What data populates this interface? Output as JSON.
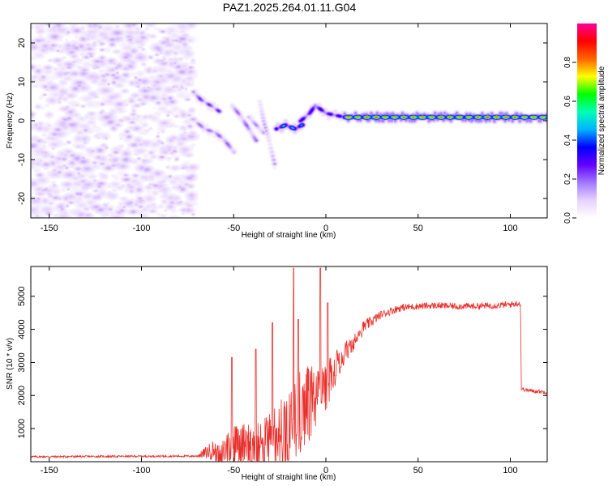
{
  "figure": {
    "title": "PAZ1.2025.264.01.11.G04"
  },
  "colors": {
    "snr_line": "#e8302c",
    "axis": "#000000",
    "colormap": [
      "#ffffff",
      "#e6d2ff",
      "#a078ff",
      "#6400ff",
      "#0000ff",
      "#00b4ff",
      "#00ffb4",
      "#00ff00",
      "#ffff00",
      "#ff6400",
      "#ff0000",
      "#ff0096"
    ]
  },
  "chart_data": [
    {
      "id": "spectrogram",
      "type": "heatmap",
      "title": "PAZ1.2025.264.01.11.G04",
      "xlabel": "Height of straight line (km)",
      "ylabel": "Frequency (Hz)",
      "xlim": [
        -160,
        120
      ],
      "ylim": [
        -25,
        25
      ],
      "xticks": [
        -150,
        -100,
        -50,
        0,
        50,
        100
      ],
      "xtick_labels": [
        "-150",
        "-100",
        "-50",
        "0",
        "50",
        "100"
      ],
      "yticks": [
        -20,
        -10,
        0,
        10,
        20
      ],
      "ytick_labels": [
        "-20",
        "-10",
        "0",
        "10",
        "20"
      ],
      "noise_region": [
        -160,
        -72
      ],
      "noise_amplitude": 0.12,
      "ridges": [
        {
          "points": [
            [
              -72,
              7.5
            ],
            [
              -68,
              5.5
            ],
            [
              -62,
              3.8
            ],
            [
              -58,
              2.5
            ]
          ],
          "amplitude": 0.22
        },
        {
          "points": [
            [
              -71,
              0
            ],
            [
              -66,
              -2
            ],
            [
              -60,
              -3
            ],
            [
              -55,
              -5
            ],
            [
              -50,
              -8
            ]
          ],
          "amplitude": 0.18
        },
        {
          "points": [
            [
              -51,
              4
            ],
            [
              -46,
              1
            ],
            [
              -42,
              -2
            ],
            [
              -38,
              -5
            ]
          ],
          "amplitude": 0.18
        },
        {
          "points": [
            [
              -42,
              1
            ],
            [
              -38,
              -1
            ],
            [
              -34,
              -3
            ]
          ],
          "amplitude": 0.15
        },
        {
          "points": [
            [
              -36,
              5
            ],
            [
              -34,
              0
            ],
            [
              -31,
              -5
            ],
            [
              -28,
              -11
            ]
          ],
          "amplitude": 0.13
        },
        {
          "points": [
            [
              -27,
              -2
            ],
            [
              -22,
              -1
            ],
            [
              -17,
              -2
            ],
            [
              -13,
              -1
            ]
          ],
          "amplitude": 0.42
        },
        {
          "points": [
            [
              -14,
              0
            ],
            [
              -9,
              2
            ],
            [
              -6,
              4
            ],
            [
              -3,
              3
            ],
            [
              0,
              2
            ],
            [
              5,
              1.5
            ],
            [
              10,
              1
            ]
          ],
          "amplitude": 0.3
        },
        {
          "points": [
            [
              10,
              1
            ],
            [
              40,
              1
            ],
            [
              80,
              1
            ],
            [
              120,
              1
            ]
          ],
          "amplitude": 0.75
        }
      ]
    },
    {
      "id": "snr",
      "type": "line",
      "xlabel": "Height of straight line (km)",
      "ylabel": "SNR (10 * v/v)",
      "xlim": [
        -160,
        120
      ],
      "ylim": [
        0,
        5900
      ],
      "xticks": [
        -150,
        -100,
        -50,
        0,
        50,
        100
      ],
      "xtick_labels": [
        "-150",
        "-100",
        "-50",
        "0",
        "50",
        "100"
      ],
      "yticks": [
        1000,
        2000,
        3000,
        4000,
        5000
      ],
      "ytick_labels": [
        "1000",
        "2000",
        "3000",
        "4000",
        "5000"
      ],
      "series": [
        {
          "name": "SNR",
          "envelope_x": [
            -160,
            -70,
            -60,
            -55,
            -50,
            -40,
            -30,
            -20,
            -15,
            -10,
            -5,
            0,
            5,
            10,
            20,
            30,
            40,
            50,
            60,
            70,
            80,
            90,
            100,
            105.5,
            106,
            110,
            120
          ],
          "envelope_y": [
            150,
            170,
            380,
            900,
            1100,
            1200,
            1550,
            2300,
            2700,
            2900,
            3000,
            3100,
            3350,
            3650,
            4050,
            4450,
            4650,
            4700,
            4720,
            4700,
            4700,
            4720,
            4750,
            4800,
            2200,
            2150,
            2100
          ],
          "noise_y": [
            30,
            30,
            350,
            700,
            900,
            1000,
            1200,
            1500,
            1600,
            1500,
            1300,
            1000,
            700,
            450,
            200,
            120,
            120,
            100,
            100,
            100,
            100,
            100,
            100,
            100,
            60,
            60,
            60
          ],
          "spikes": [
            [
              -51,
              3150
            ],
            [
              -38,
              3400
            ],
            [
              -29,
              4200
            ],
            [
              -17.5,
              5850
            ],
            [
              -15,
              4300
            ],
            [
              -3,
              5850
            ],
            [
              1,
              4800
            ]
          ]
        }
      ]
    }
  ],
  "colorbar": {
    "label": "Normalized spectral amplitude",
    "range": [
      0,
      1
    ],
    "ticks": [
      0.0,
      0.2,
      0.4,
      0.6,
      0.8
    ],
    "tick_labels": [
      "0.0",
      "0.2",
      "0.4",
      "0.6",
      "0.8"
    ]
  }
}
